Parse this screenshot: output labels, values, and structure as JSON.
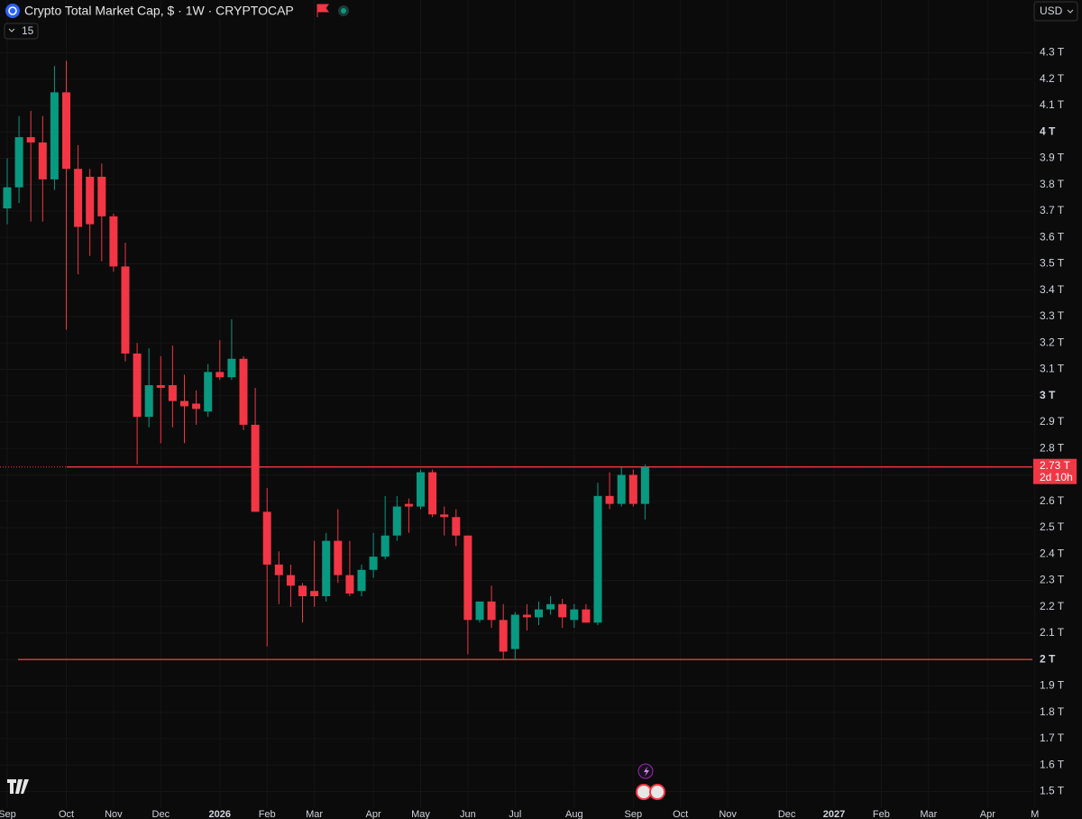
{
  "chart_data": {
    "type": "candlestick",
    "title": "Crypto Total Market Cap, $ · 1W · CRYPTOCAP",
    "indicator_count": "15",
    "currency": "USD",
    "up_color": "#089981",
    "down_color": "#f23645",
    "grid": true,
    "categories": [
      "Sep",
      null,
      null,
      null,
      null,
      "Oct",
      null,
      null,
      null,
      "Nov",
      null,
      null,
      null,
      "Dec",
      null,
      null,
      null,
      null,
      "2026",
      null,
      null,
      null,
      "Feb",
      null,
      null,
      null,
      "Mar",
      null,
      null,
      null,
      null,
      "Apr",
      null,
      null,
      null,
      "May",
      null,
      null,
      null,
      "Jun",
      null,
      null,
      null,
      "Jul",
      null,
      null,
      null,
      null,
      "Aug",
      null,
      null,
      null,
      null,
      "Sep",
      null,
      null,
      null,
      "Oct",
      null,
      null,
      null,
      "Nov",
      null,
      null,
      null,
      null,
      "Dec",
      null,
      null,
      null,
      "2027",
      null,
      null,
      null,
      "Feb",
      null,
      null,
      null,
      "Mar",
      null,
      null,
      null,
      null,
      "Apr",
      null,
      null,
      null,
      "M"
    ],
    "open": [
      3.71,
      3.79,
      3.98,
      3.96,
      3.82,
      4.15,
      3.86,
      3.83,
      3.83,
      3.68,
      3.49,
      3.16,
      2.92,
      3.04,
      3.04,
      2.98,
      2.97,
      2.94,
      3.09,
      3.07,
      3.14,
      2.89,
      2.56,
      2.36,
      2.32,
      2.28,
      2.26,
      2.24,
      2.45,
      2.32,
      2.26,
      2.34,
      2.39,
      2.47,
      2.59,
      2.58,
      2.71,
      2.55,
      2.54,
      2.47,
      2.15,
      2.22,
      2.15,
      2.04,
      2.17,
      2.16,
      2.19,
      2.21,
      2.15,
      2.19,
      2.14,
      2.62,
      2.59,
      2.7,
      2.59,
      null,
      null,
      null,
      null,
      null,
      null,
      null,
      null,
      null,
      null,
      null,
      null,
      null,
      null,
      null,
      null,
      null,
      null,
      null,
      null,
      null,
      null,
      null,
      null,
      null,
      null,
      null,
      null,
      null,
      null,
      null,
      null,
      null
    ],
    "high": [
      3.9,
      4.06,
      4.08,
      4.06,
      4.25,
      4.27,
      3.95,
      3.86,
      3.88,
      3.69,
      3.58,
      3.2,
      3.18,
      3.15,
      3.19,
      3.08,
      3.02,
      3.12,
      3.21,
      3.29,
      3.15,
      3.03,
      2.65,
      2.41,
      2.36,
      2.29,
      2.45,
      2.48,
      2.57,
      2.45,
      2.36,
      2.48,
      2.62,
      2.62,
      2.61,
      2.72,
      2.72,
      2.58,
      2.57,
      2.47,
      2.22,
      2.28,
      2.21,
      2.18,
      2.21,
      2.22,
      2.24,
      2.23,
      2.21,
      2.21,
      2.67,
      2.71,
      2.73,
      2.72,
      2.74,
      null,
      null,
      null,
      null,
      null,
      null,
      null,
      null,
      null,
      null,
      null,
      null,
      null,
      null,
      null,
      null,
      null,
      null,
      null,
      null,
      null,
      null,
      null,
      null,
      null,
      null,
      null,
      null,
      null,
      null,
      null,
      null,
      null
    ],
    "low": [
      3.65,
      3.73,
      3.66,
      3.66,
      3.78,
      3.25,
      3.46,
      3.53,
      3.51,
      3.47,
      3.13,
      2.74,
      2.88,
      2.82,
      2.88,
      2.82,
      2.89,
      2.92,
      3.06,
      3.06,
      2.87,
      2.56,
      2.05,
      2.21,
      2.2,
      2.14,
      2.2,
      2.22,
      2.29,
      2.24,
      2.24,
      2.31,
      2.38,
      2.45,
      2.48,
      2.57,
      2.54,
      2.47,
      2.43,
      2.02,
      2.14,
      2.12,
      2.0,
      2.0,
      2.11,
      2.13,
      2.17,
      2.12,
      2.12,
      2.14,
      2.13,
      2.57,
      2.58,
      2.58,
      2.53,
      null,
      null,
      null,
      null,
      null,
      null,
      null,
      null,
      null,
      null,
      null,
      null,
      null,
      null,
      null,
      null,
      null,
      null,
      null,
      null,
      null,
      null,
      null,
      null,
      null,
      null,
      null,
      null,
      null,
      null,
      null,
      null,
      null
    ],
    "close": [
      3.79,
      3.98,
      3.96,
      3.82,
      4.15,
      3.86,
      3.64,
      3.65,
      3.68,
      3.49,
      3.16,
      2.92,
      3.04,
      3.03,
      2.98,
      2.96,
      2.95,
      3.09,
      3.07,
      3.14,
      2.89,
      2.56,
      2.36,
      2.32,
      2.28,
      2.24,
      2.24,
      2.45,
      2.32,
      2.25,
      2.34,
      2.39,
      2.47,
      2.58,
      2.58,
      2.71,
      2.55,
      2.54,
      2.47,
      2.15,
      2.22,
      2.15,
      2.03,
      2.17,
      2.16,
      2.19,
      2.21,
      2.16,
      2.19,
      2.14,
      2.62,
      2.59,
      2.7,
      2.59,
      2.73,
      null,
      null,
      null,
      null,
      null,
      null,
      null,
      null,
      null,
      null,
      null,
      null,
      null,
      null,
      null,
      null,
      null,
      null,
      null,
      null,
      null,
      null,
      null,
      null,
      null,
      null,
      null,
      null,
      null,
      null,
      null,
      null,
      null
    ],
    "ylim": [
      1.44,
      4.5
    ],
    "yticks": [
      {
        "value": 4.3,
        "label": "4.3 T"
      },
      {
        "value": 4.2,
        "label": "4.2 T"
      },
      {
        "value": 4.1,
        "label": "4.1 T"
      },
      {
        "value": 4.0,
        "label": "4 T"
      },
      {
        "value": 3.9,
        "label": "3.9 T"
      },
      {
        "value": 3.8,
        "label": "3.8 T"
      },
      {
        "value": 3.7,
        "label": "3.7 T"
      },
      {
        "value": 3.6,
        "label": "3.6 T"
      },
      {
        "value": 3.5,
        "label": "3.5 T"
      },
      {
        "value": 3.4,
        "label": "3.4 T"
      },
      {
        "value": 3.3,
        "label": "3.3 T"
      },
      {
        "value": 3.2,
        "label": "3.2 T"
      },
      {
        "value": 3.1,
        "label": "3.1 T"
      },
      {
        "value": 3.0,
        "label": "3 T"
      },
      {
        "value": 2.9,
        "label": "2.9 T"
      },
      {
        "value": 2.8,
        "label": "2.8 T"
      },
      {
        "value": 2.7,
        "label": "2.7 T"
      },
      {
        "value": 2.6,
        "label": "2.6 T"
      },
      {
        "value": 2.5,
        "label": "2.5 T"
      },
      {
        "value": 2.4,
        "label": "2.4 T"
      },
      {
        "value": 2.3,
        "label": "2.3 T"
      },
      {
        "value": 2.2,
        "label": "2.2 T"
      },
      {
        "value": 2.1,
        "label": "2.1 T"
      },
      {
        "value": 2.0,
        "label": "2 T"
      },
      {
        "value": 1.9,
        "label": "1.9 T"
      },
      {
        "value": 1.8,
        "label": "1.8 T"
      },
      {
        "value": 1.7,
        "label": "1.7 T"
      },
      {
        "value": 1.6,
        "label": "1.6 T"
      },
      {
        "value": 1.5,
        "label": "1.5 T"
      }
    ],
    "horizontal_lines": [
      {
        "value": 2.73,
        "color": "#f23645"
      },
      {
        "value": 2.0,
        "color": "#f23645"
      }
    ],
    "last_price": {
      "value": 2.73,
      "label": "2.73 T",
      "countdown": "2d 10h",
      "color": "#f23645"
    }
  }
}
